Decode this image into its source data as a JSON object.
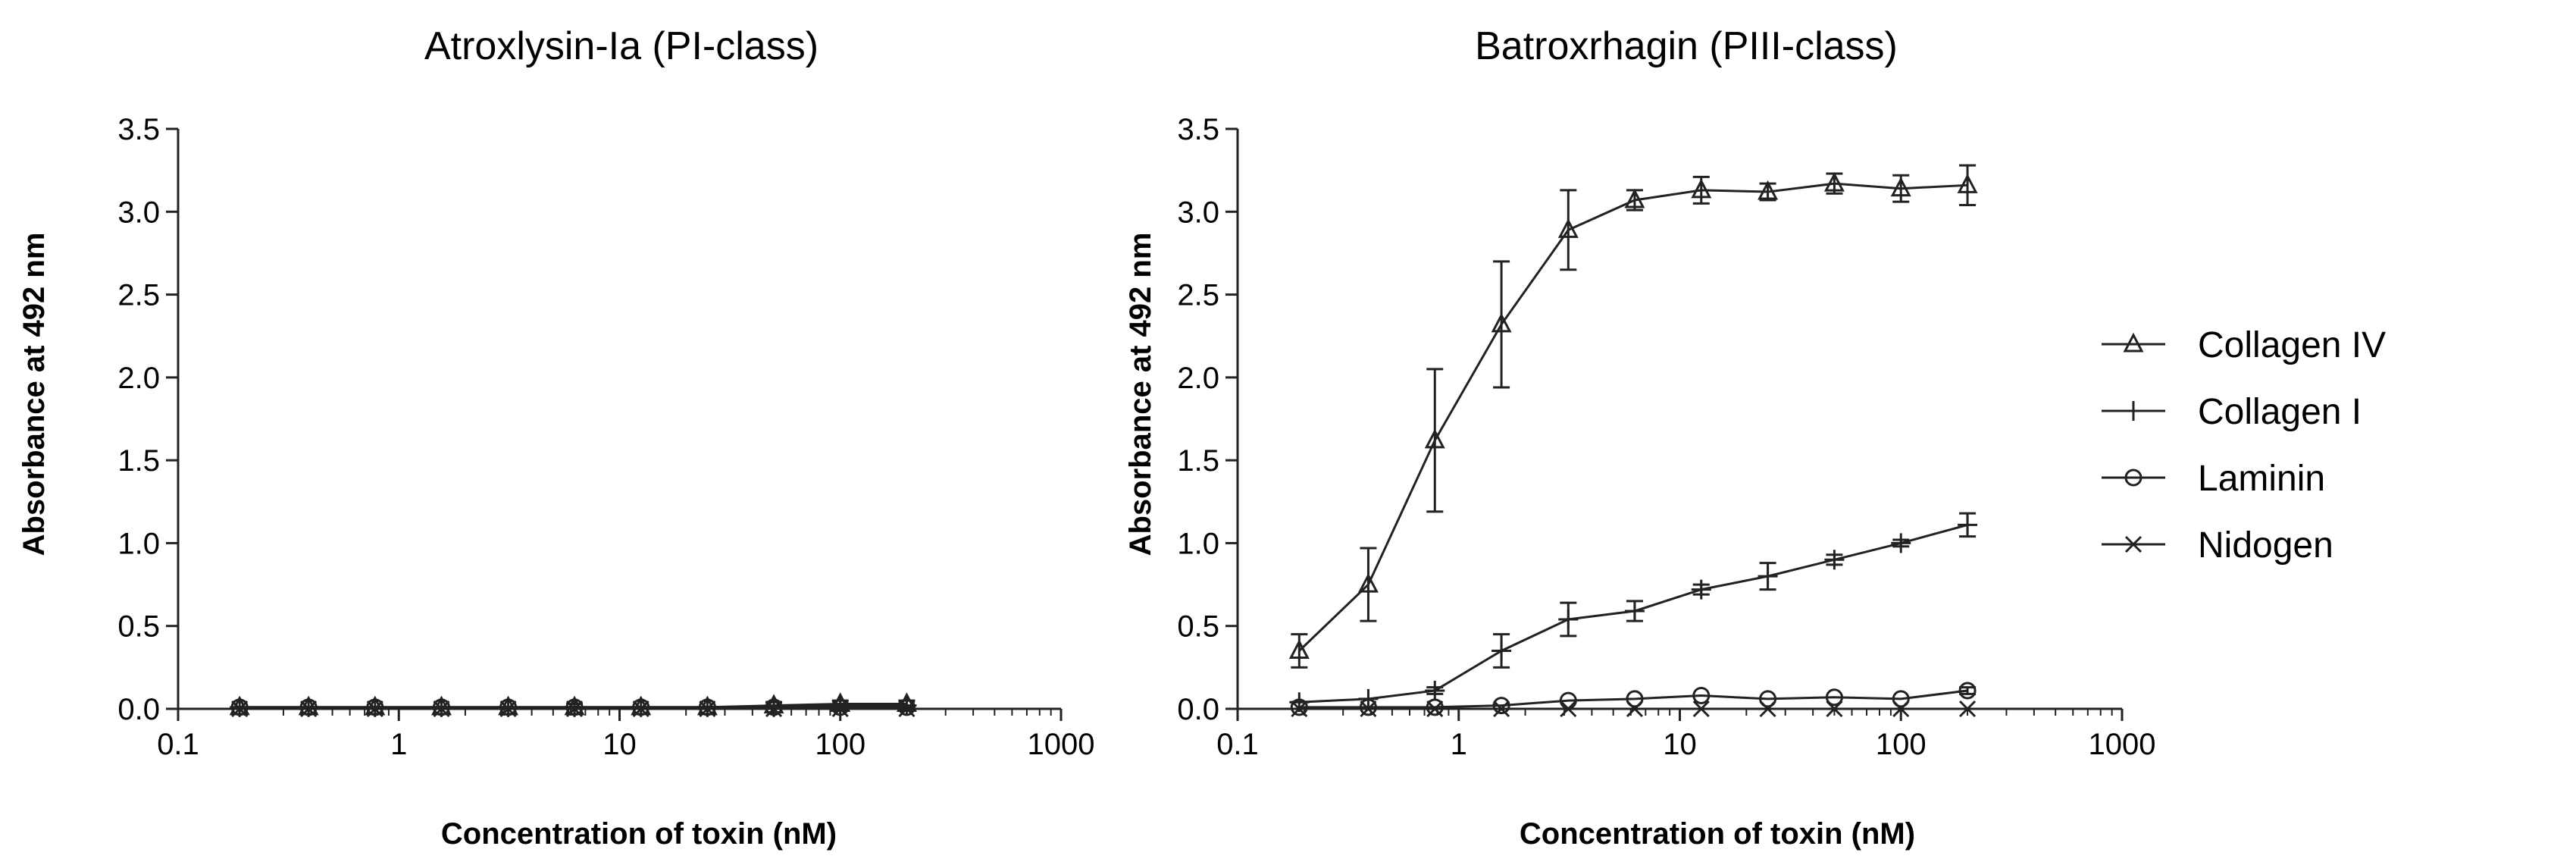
{
  "chart_data": [
    {
      "type": "line",
      "title": "Atroxlysin-Ia (PI-class)",
      "xlabel": "Concentration of toxin (nM)",
      "ylabel": "Absorbance at 492 nm",
      "xscale": "log",
      "xlim": [
        0.1,
        1000
      ],
      "ylim": [
        0,
        3.5
      ],
      "x_ticks": [
        "0.1",
        "1",
        "10",
        "100",
        "1000"
      ],
      "y_ticks": [
        "0.0",
        "0.5",
        "1.0",
        "1.5",
        "2.0",
        "2.5",
        "3.0",
        "3.5"
      ],
      "x": [
        0.19,
        0.39,
        0.78,
        1.56,
        3.13,
        6.25,
        12.5,
        25,
        50,
        100,
        200
      ],
      "series": [
        {
          "name": "Collagen IV",
          "marker": "triangle",
          "values": [
            0.01,
            0.01,
            0.01,
            0.01,
            0.01,
            0.01,
            0.01,
            0.01,
            0.02,
            0.03,
            0.03
          ],
          "errors": [
            0.01,
            0.01,
            0.01,
            0.01,
            0.01,
            0.02,
            0.01,
            0.01,
            0.02,
            0.02,
            0.02
          ]
        },
        {
          "name": "Collagen I",
          "marker": "plus",
          "values": [
            0.01,
            0.01,
            0.01,
            0.01,
            0.01,
            0.01,
            0.01,
            0.01,
            0.01,
            0.02,
            0.02
          ],
          "errors": [
            0.01,
            0.01,
            0.01,
            0.01,
            0.01,
            0.01,
            0.01,
            0.01,
            0.01,
            0.01,
            0.01
          ]
        },
        {
          "name": "Laminin",
          "marker": "circle",
          "values": [
            0.01,
            0.01,
            0.01,
            0.01,
            0.01,
            0.01,
            0.01,
            0.01,
            0.01,
            0.01,
            0.01
          ],
          "errors": [
            0.01,
            0.01,
            0.01,
            0.01,
            0.01,
            0.01,
            0.01,
            0.01,
            0.01,
            0.01,
            0.01
          ]
        },
        {
          "name": "Nidogen",
          "marker": "cross",
          "values": [
            0.0,
            0.0,
            0.0,
            0.0,
            0.0,
            0.0,
            0.0,
            0.0,
            0.0,
            0.0,
            0.0
          ],
          "errors": [
            0,
            0,
            0,
            0,
            0,
            0,
            0,
            0,
            0,
            0,
            0
          ]
        }
      ]
    },
    {
      "type": "line",
      "title": "Batroxrhagin (PIII-class)",
      "xlabel": "Concentration of toxin (nM)",
      "ylabel": "Absorbance at 492 nm",
      "xscale": "log",
      "xlim": [
        0.1,
        1000
      ],
      "ylim": [
        0,
        3.5
      ],
      "x_ticks": [
        "0.1",
        "1",
        "10",
        "100",
        "1000"
      ],
      "y_ticks": [
        "0.0",
        "0.5",
        "1.0",
        "1.5",
        "2.0",
        "2.5",
        "3.0",
        "3.5"
      ],
      "legend": "right",
      "x": [
        0.19,
        0.39,
        0.78,
        1.56,
        3.13,
        6.25,
        12.5,
        25,
        50,
        100,
        200
      ],
      "series": [
        {
          "name": "Collagen IV",
          "marker": "triangle",
          "values": [
            0.35,
            0.75,
            1.62,
            2.32,
            2.89,
            3.07,
            3.13,
            3.12,
            3.17,
            3.14,
            3.16
          ],
          "errors": [
            0.1,
            0.22,
            0.43,
            0.38,
            0.24,
            0.06,
            0.08,
            0.05,
            0.06,
            0.08,
            0.12
          ]
        },
        {
          "name": "Collagen I",
          "marker": "plus",
          "values": [
            0.04,
            0.06,
            0.11,
            0.35,
            0.54,
            0.59,
            0.72,
            0.8,
            0.9,
            1.0,
            1.11
          ],
          "errors": [
            0.01,
            0.01,
            0.02,
            0.1,
            0.1,
            0.06,
            0.03,
            0.08,
            0.03,
            0.02,
            0.07
          ]
        },
        {
          "name": "Laminin",
          "marker": "circle",
          "values": [
            0.01,
            0.01,
            0.01,
            0.02,
            0.05,
            0.06,
            0.08,
            0.06,
            0.07,
            0.06,
            0.11
          ],
          "errors": [
            0.01,
            0.01,
            0.01,
            0.01,
            0.01,
            0.01,
            0.01,
            0.01,
            0.01,
            0.01,
            0.02
          ]
        },
        {
          "name": "Nidogen",
          "marker": "cross",
          "values": [
            0.0,
            0.0,
            0.0,
            0.0,
            0.0,
            0.0,
            0.0,
            0.0,
            0.0,
            0.0,
            0.0
          ],
          "errors": [
            0,
            0,
            0,
            0,
            0,
            0,
            0,
            0,
            0,
            0,
            0
          ]
        }
      ]
    }
  ],
  "legend": {
    "items": [
      {
        "label": "Collagen IV",
        "marker": "triangle"
      },
      {
        "label": "Collagen I",
        "marker": "plus"
      },
      {
        "label": "Laminin",
        "marker": "circle"
      },
      {
        "label": "Nidogen",
        "marker": "cross"
      }
    ]
  }
}
